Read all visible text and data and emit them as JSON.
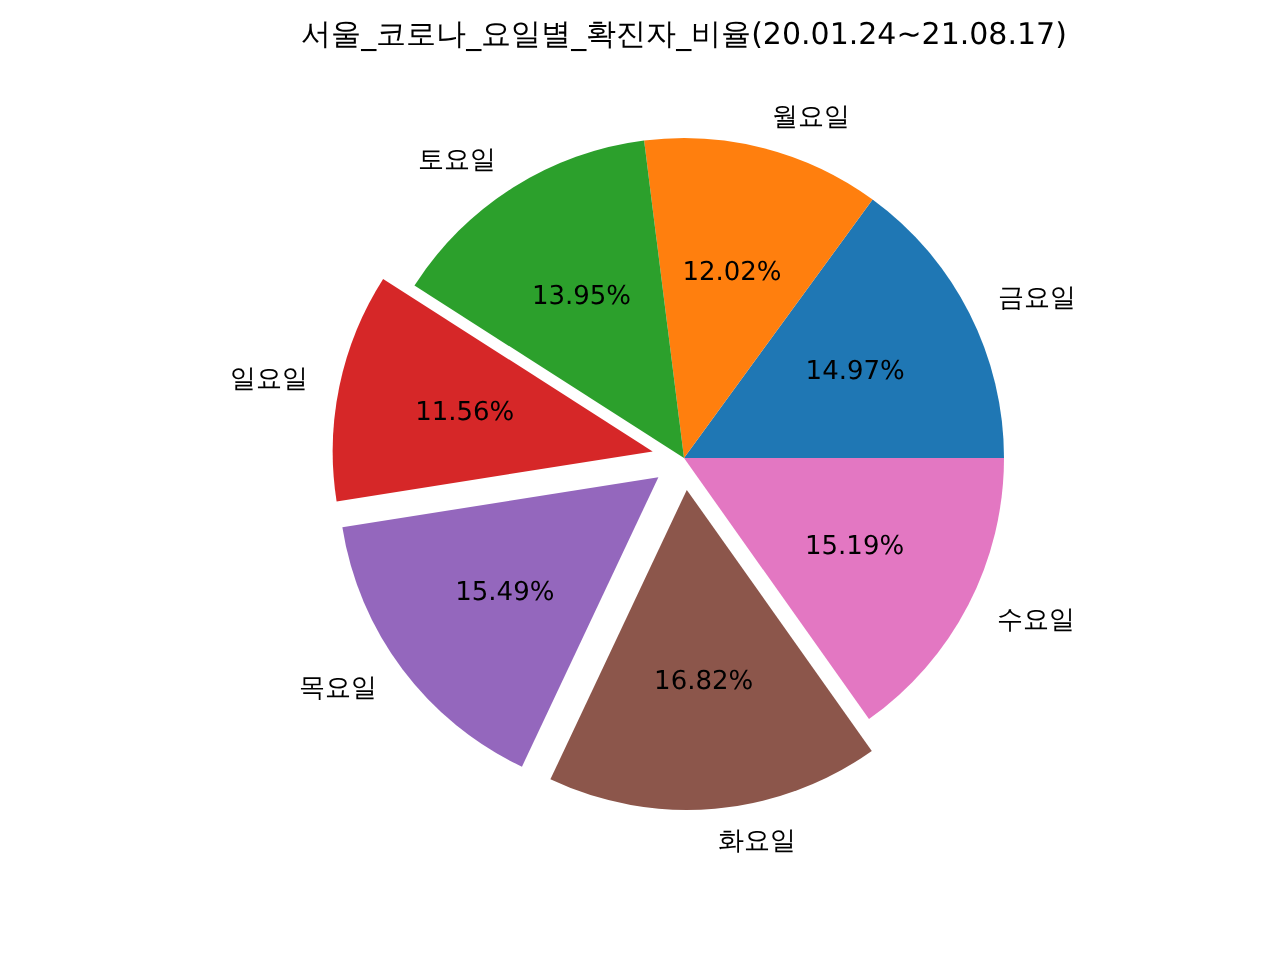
{
  "chart_data": {
    "type": "pie",
    "title": "서울_코로나_요일별_확진자_비율(20.01.24~21.08.17)",
    "categories": [
      "금요일",
      "월요일",
      "토요일",
      "일요일",
      "목요일",
      "화요일",
      "수요일"
    ],
    "values": [
      14.97,
      12.02,
      13.95,
      11.56,
      15.49,
      16.82,
      15.19
    ],
    "value_labels": [
      "14.97%",
      "12.02%",
      "13.95%",
      "11.56%",
      "15.49%",
      "16.82%",
      "15.19%"
    ],
    "colors": [
      "#1f77b4",
      "#ff7f0e",
      "#2ca02c",
      "#d62728",
      "#9467bd",
      "#8c564b",
      "#e377c2"
    ]
  }
}
